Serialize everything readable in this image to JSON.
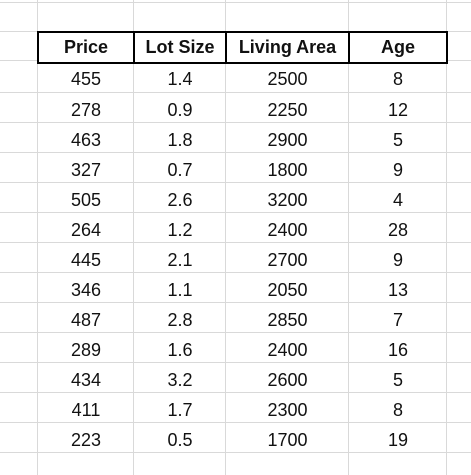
{
  "sheet": {
    "headers": [
      "Price",
      "Lot Size",
      "Living Area",
      "Age"
    ],
    "rows": [
      [
        "455",
        "1.4",
        "2500",
        "8"
      ],
      [
        "278",
        "0.9",
        "2250",
        "12"
      ],
      [
        "463",
        "1.8",
        "2900",
        "5"
      ],
      [
        "327",
        "0.7",
        "1800",
        "9"
      ],
      [
        "505",
        "2.6",
        "3200",
        "4"
      ],
      [
        "264",
        "1.2",
        "2400",
        "28"
      ],
      [
        "445",
        "2.1",
        "2700",
        "9"
      ],
      [
        "346",
        "1.1",
        "2050",
        "13"
      ],
      [
        "487",
        "2.8",
        "2850",
        "7"
      ],
      [
        "289",
        "1.6",
        "2400",
        "16"
      ],
      [
        "434",
        "3.2",
        "2600",
        "5"
      ],
      [
        "411",
        "1.7",
        "2300",
        "8"
      ],
      [
        "223",
        "0.5",
        "1700",
        "19"
      ]
    ]
  }
}
